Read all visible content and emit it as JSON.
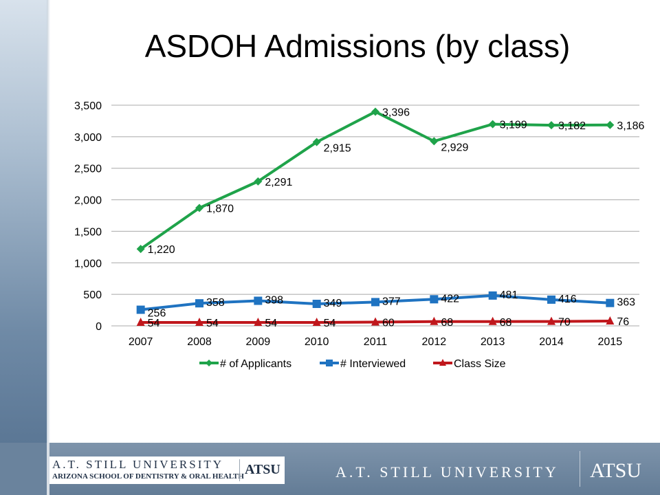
{
  "slide": {
    "title": "ASDOH Admissions (by class)"
  },
  "footer": {
    "logo_name": "A.T. STILL UNIVERSITY",
    "logo_subtitle": "ARIZONA SCHOOL OF DENTISTRY & ORAL HEALTH",
    "logo_abbrev": "ATSU",
    "university_name": "A.T. STILL UNIVERSITY",
    "university_abbrev": "ATSU"
  },
  "chart_data": {
    "type": "line",
    "title": "ASDOH Admissions (by class)",
    "categories": [
      "2007",
      "2008",
      "2009",
      "2010",
      "2011",
      "2012",
      "2013",
      "2014",
      "2015"
    ],
    "ylim": [
      0,
      3500
    ],
    "yticks": [
      "0",
      "500",
      "1,000",
      "1,500",
      "2,000",
      "2,500",
      "3,000",
      "3,500"
    ],
    "grid": true,
    "legend_position": "bottom",
    "series": [
      {
        "name": "# of Applicants",
        "color": "#1fa34a",
        "marker": "diamond",
        "values": [
          1220,
          1870,
          2291,
          2915,
          3396,
          2929,
          3199,
          3182,
          3186
        ],
        "labels": [
          "1,220",
          "1,870",
          "2,291",
          "2,915",
          "3,396",
          "2,929",
          "3,199",
          "3,182",
          "3,186"
        ]
      },
      {
        "name": "# Interviewed",
        "color": "#1f73c1",
        "marker": "square",
        "values": [
          256,
          358,
          398,
          349,
          377,
          422,
          481,
          416,
          363
        ],
        "labels": [
          "256",
          "358",
          "398",
          "349",
          "377",
          "422",
          "481",
          "416",
          "363"
        ]
      },
      {
        "name": "Class Size",
        "color": "#c0171c",
        "marker": "triangle",
        "values": [
          54,
          54,
          54,
          54,
          60,
          68,
          68,
          70,
          76
        ],
        "labels": [
          "54",
          "54",
          "54",
          "54",
          "60",
          "68",
          "68",
          "70",
          "76"
        ]
      }
    ]
  }
}
